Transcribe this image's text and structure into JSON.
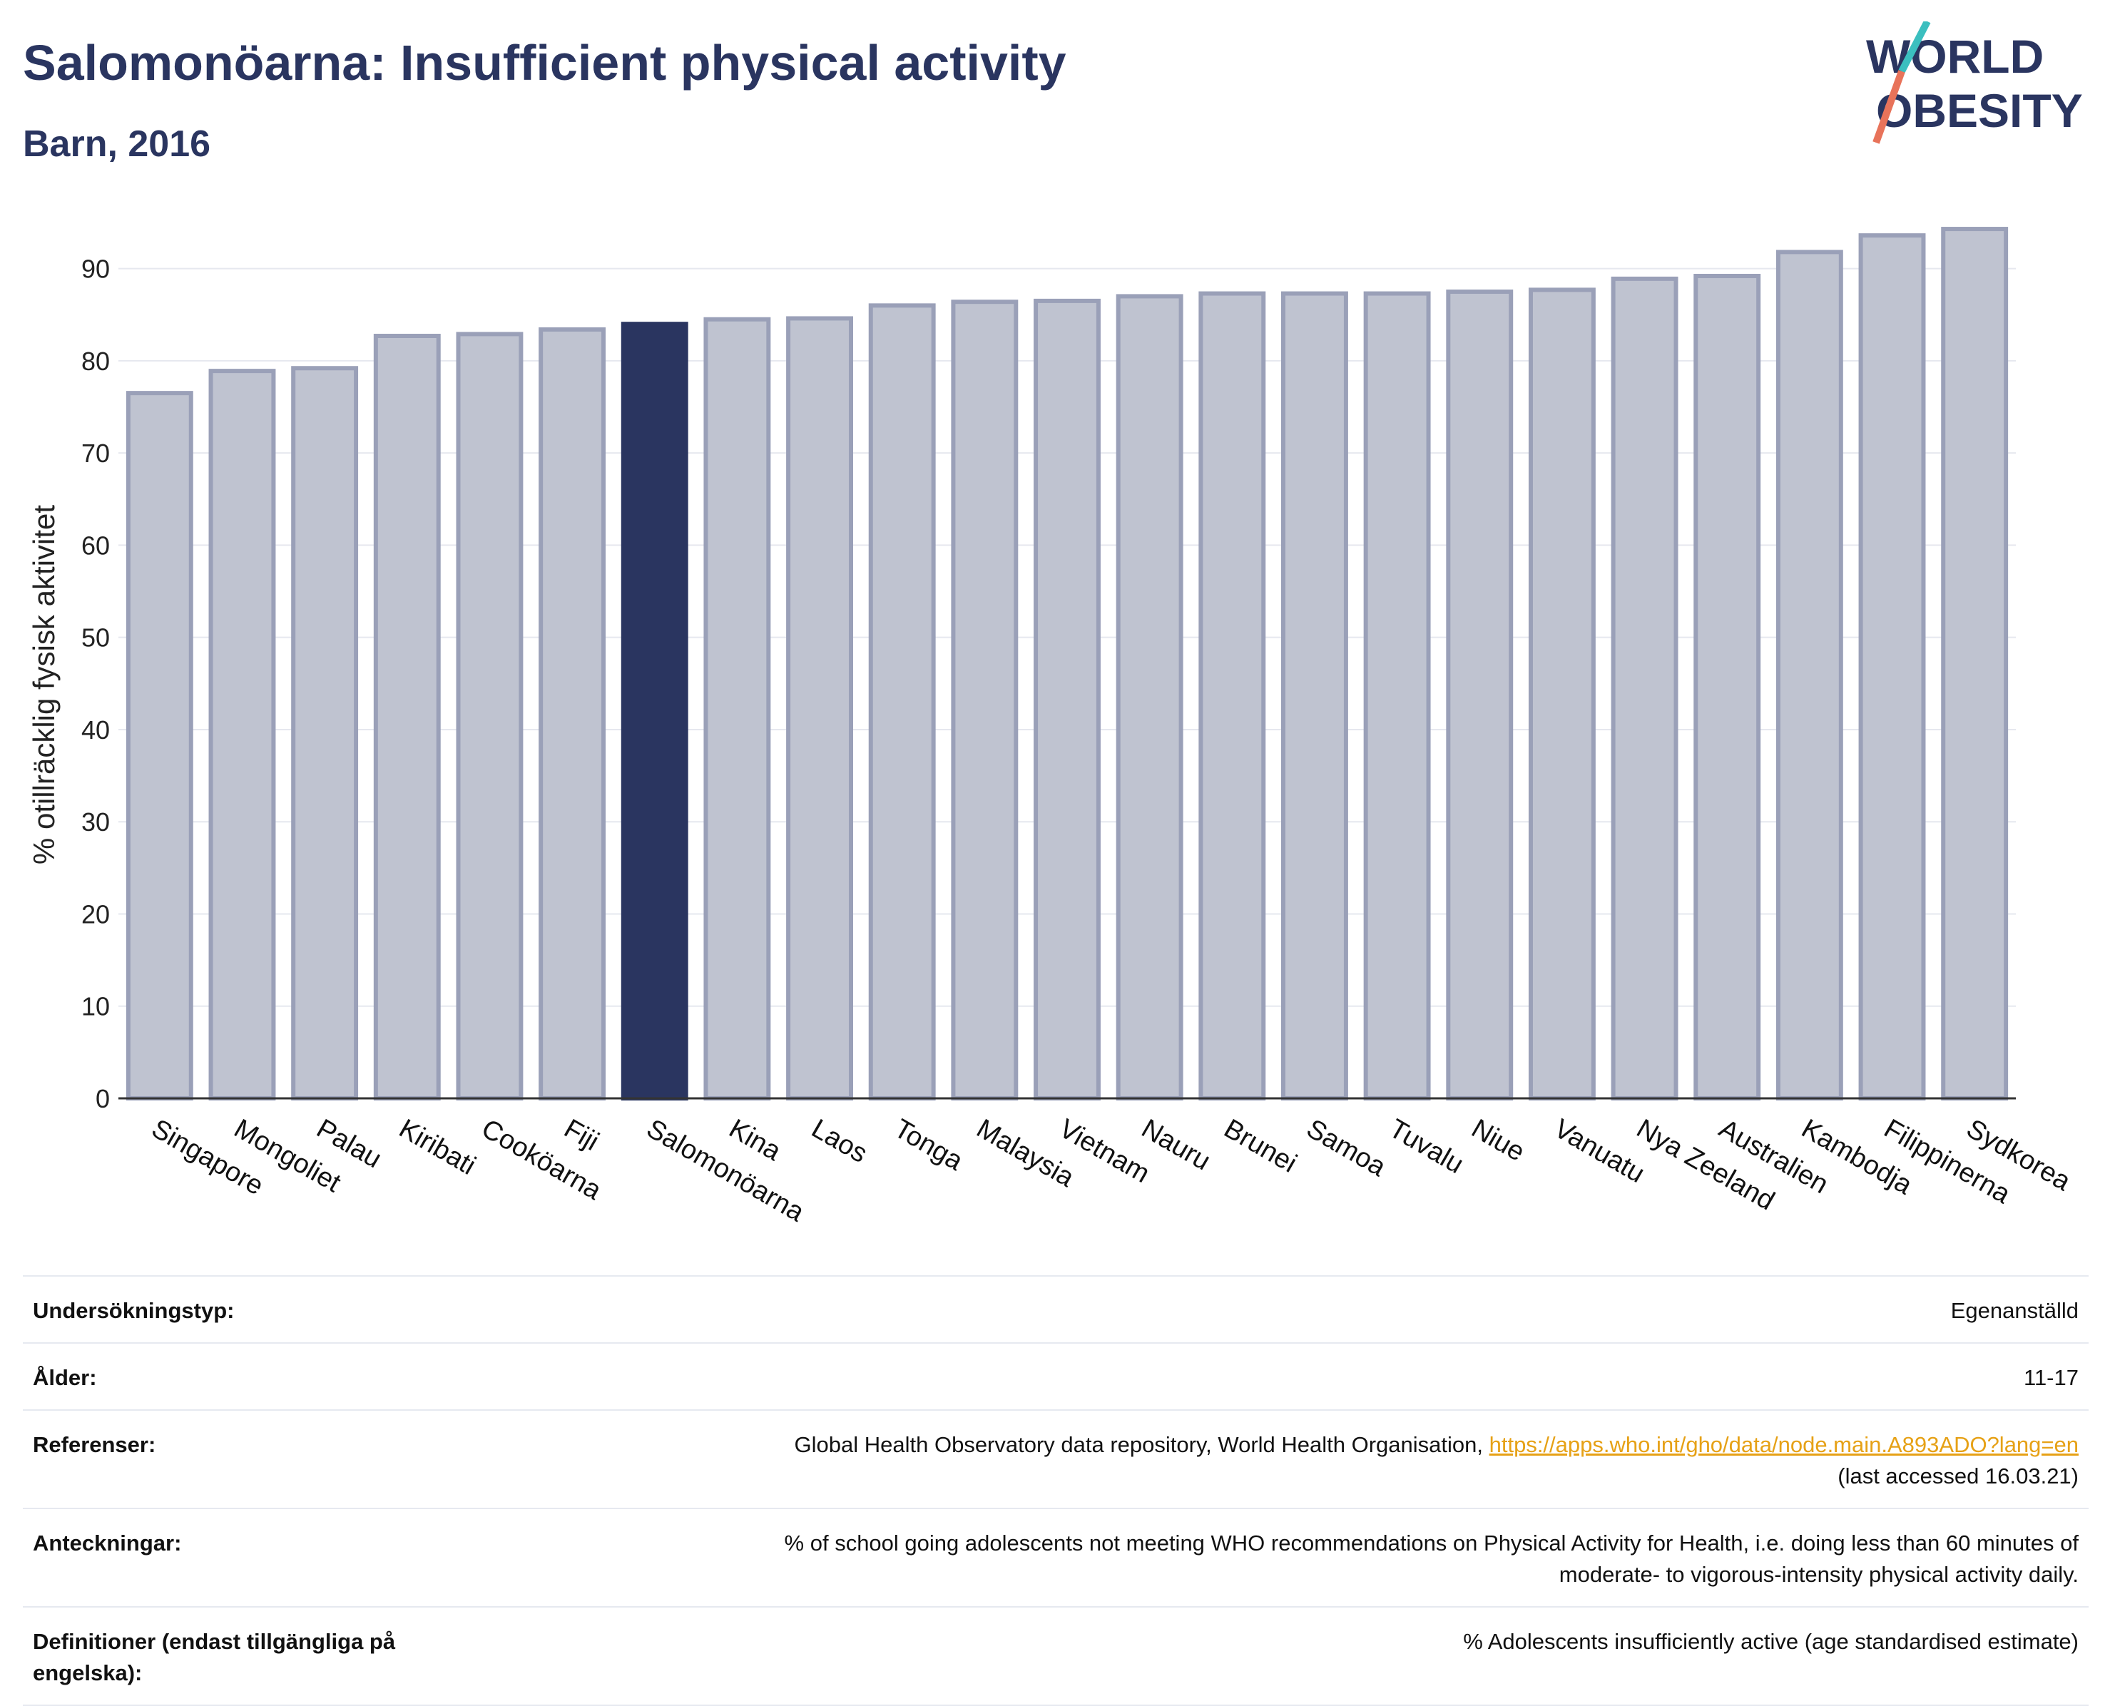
{
  "header": {
    "title": "Salomonöarna: Insufficient physical activity",
    "subtitle": "Barn, 2016"
  },
  "logo": {
    "line1": "WORLD",
    "line2": "OBESITY",
    "colors": {
      "text": "#2a3560",
      "slash_teal": "#3bbfbf",
      "slash_coral": "#e8735a"
    }
  },
  "chart_data": {
    "type": "bar",
    "title": "Salomonöarna: Insufficient physical activity",
    "subtitle": "Barn, 2016",
    "ylabel": "% otillräcklig fysisk aktivitet",
    "xlabel": "",
    "ylim": [
      0,
      95
    ],
    "yticks": [
      0,
      10,
      20,
      30,
      40,
      50,
      60,
      70,
      80,
      90
    ],
    "grid": true,
    "highlight": "Salomonöarna",
    "colors": {
      "bar": "#bfc3d0",
      "bar_edge": "#9aa0b8",
      "highlight": "#2a3560"
    },
    "categories": [
      "Singapore",
      "Mongoliet",
      "Palau",
      "Kiribati",
      "Cookö­arna",
      "Fiji",
      "Salomonöarna",
      "Kina",
      "Laos",
      "Tonga",
      "Malaysia",
      "Vietnam",
      "Nauru",
      "Brunei",
      "Samoa",
      "Tuvalu",
      "Niue",
      "Vanuatu",
      "Nya Zeeland",
      "Australien",
      "Kambodja",
      "Filippinerna",
      "Sydkorea"
    ],
    "values": [
      76.5,
      78.9,
      79.2,
      82.7,
      82.9,
      83.4,
      84.0,
      84.5,
      84.6,
      86.0,
      86.4,
      86.5,
      87.0,
      87.3,
      87.3,
      87.3,
      87.5,
      87.7,
      88.9,
      89.2,
      91.8,
      93.6,
      94.3
    ]
  },
  "info": {
    "rows": [
      {
        "label": "Undersökningstyp:",
        "value": "Egenanställd"
      },
      {
        "label": "Ålder:",
        "value": "11-17"
      },
      {
        "label": "Referenser:",
        "value": "Global Health Observatory data repository, World Health Organisation, ",
        "link": "https://apps.who.int/gho/data/node.main.A893ADO?lang=en",
        "value2": "(last accessed 16.03.21)"
      },
      {
        "label": "Anteckningar:",
        "value": "% of school going adolescents not meeting WHO recommendations on Physical Activity for Health, i.e. doing less than 60 minutes of",
        "value2": "moderate- to vigorous-intensity physical activity daily."
      },
      {
        "label": "Definitioner (endast tillgängliga på engelska):",
        "value": "% Adolescents insufficiently active (age standardised estimate)"
      }
    ]
  }
}
